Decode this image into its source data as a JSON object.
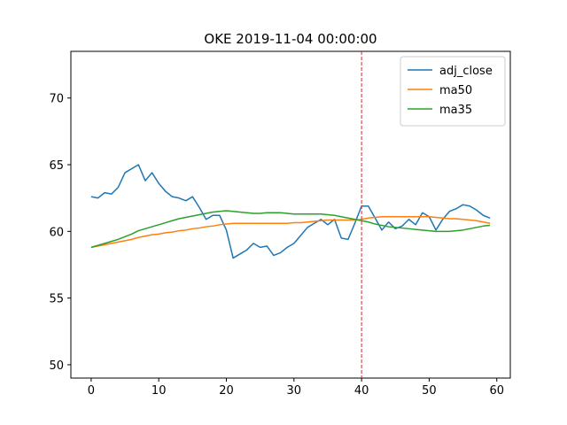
{
  "chart_data": {
    "type": "line",
    "title": "OKE 2019-11-04 00:00:00",
    "xlabel": "",
    "ylabel": "",
    "xlim": [
      -3,
      62
    ],
    "ylim": [
      49,
      73.5
    ],
    "xticks": [
      0,
      10,
      20,
      30,
      40,
      50,
      60
    ],
    "yticks": [
      50,
      55,
      60,
      65,
      70
    ],
    "grid": false,
    "legend_position": "top-right",
    "vline": {
      "x": 40,
      "color": "#d62728",
      "style": "dashed"
    },
    "x": [
      0,
      1,
      2,
      3,
      4,
      5,
      6,
      7,
      8,
      9,
      10,
      11,
      12,
      13,
      14,
      15,
      16,
      17,
      18,
      19,
      20,
      21,
      22,
      23,
      24,
      25,
      26,
      27,
      28,
      29,
      30,
      31,
      32,
      33,
      34,
      35,
      36,
      37,
      38,
      39,
      40,
      41,
      42,
      43,
      44,
      45,
      46,
      47,
      48,
      49,
      50,
      51,
      52,
      53,
      54,
      55,
      56,
      57,
      58,
      59
    ],
    "series": [
      {
        "name": "adj_close",
        "color": "#1f77b4",
        "values": [
          62.6,
          62.5,
          62.9,
          62.8,
          63.3,
          64.4,
          64.7,
          65.0,
          63.8,
          64.4,
          63.6,
          63.0,
          62.6,
          62.5,
          62.3,
          62.6,
          61.8,
          60.9,
          61.2,
          61.2,
          60.1,
          58.0,
          58.3,
          58.6,
          59.1,
          58.8,
          58.9,
          58.2,
          58.4,
          58.8,
          59.1,
          59.7,
          60.3,
          60.6,
          60.9,
          60.5,
          60.9,
          59.5,
          59.4,
          60.6,
          61.9,
          61.9,
          61.0,
          60.1,
          60.7,
          60.2,
          60.4,
          60.9,
          60.5,
          61.4,
          61.1,
          60.1,
          60.9,
          61.5,
          61.7,
          62.0,
          61.9,
          61.6,
          61.2,
          61.0
        ]
      },
      {
        "name": "ma50",
        "color": "#ff7f0e",
        "values": [
          58.8,
          58.9,
          59.0,
          59.1,
          59.2,
          59.3,
          59.4,
          59.55,
          59.65,
          59.75,
          59.8,
          59.9,
          59.95,
          60.05,
          60.1,
          60.2,
          60.25,
          60.35,
          60.4,
          60.5,
          60.55,
          60.6,
          60.6,
          60.6,
          60.6,
          60.6,
          60.6,
          60.6,
          60.6,
          60.6,
          60.65,
          60.65,
          60.7,
          60.75,
          60.8,
          60.85,
          60.85,
          60.85,
          60.85,
          60.85,
          60.9,
          61.0,
          61.05,
          61.1,
          61.1,
          61.1,
          61.1,
          61.1,
          61.1,
          61.1,
          61.1,
          61.05,
          61.0,
          60.95,
          60.95,
          60.9,
          60.85,
          60.8,
          60.7,
          60.6
        ]
      },
      {
        "name": "ma35",
        "color": "#2ca02c",
        "values": [
          58.8,
          58.95,
          59.1,
          59.25,
          59.4,
          59.6,
          59.8,
          60.05,
          60.2,
          60.35,
          60.5,
          60.65,
          60.8,
          60.95,
          61.05,
          61.15,
          61.25,
          61.35,
          61.45,
          61.5,
          61.55,
          61.5,
          61.45,
          61.4,
          61.35,
          61.35,
          61.4,
          61.4,
          61.4,
          61.35,
          61.3,
          61.3,
          61.3,
          61.3,
          61.3,
          61.25,
          61.2,
          61.1,
          61.0,
          60.9,
          60.8,
          60.7,
          60.55,
          60.45,
          60.35,
          60.3,
          60.25,
          60.2,
          60.15,
          60.1,
          60.05,
          60.0,
          60.0,
          60.0,
          60.05,
          60.1,
          60.2,
          60.3,
          60.4,
          60.45
        ]
      }
    ]
  }
}
